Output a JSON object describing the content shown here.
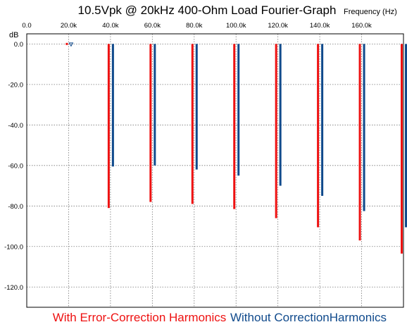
{
  "chart_data": {
    "type": "bar",
    "title": "10.5Vpk @ 20kHz 400-Ohm Load Fourier-Graph",
    "xlabel": "Frequency   (Hz)",
    "ylabel": "dB",
    "x_ticks": [
      "0.0",
      "20.0k",
      "40.0k",
      "60.0k",
      "80.0k",
      "100.0k",
      "120.0k",
      "140.0k",
      "160.0k"
    ],
    "y_ticks": [
      "0.0",
      "-20.0",
      "-40.0",
      "-60.0",
      "-80.0",
      "-100.0",
      "-120.0"
    ],
    "xlim": [
      0,
      180000
    ],
    "ylim": [
      -130,
      5
    ],
    "grid": true,
    "legend_placement": "bottom",
    "categories": [
      20000,
      40000,
      60000,
      80000,
      100000,
      120000,
      140000,
      160000,
      180000
    ],
    "series": [
      {
        "name": "With Error-Correction Harmonics",
        "color": "#ee1111",
        "values": [
          0,
          -81,
          -78,
          -79,
          -81.5,
          -86,
          -90.5,
          -97,
          -103.5
        ]
      },
      {
        "name": "Without CorrectionHarmonics",
        "color": "#104a8c",
        "values": [
          0,
          -60.5,
          -60,
          -62,
          -65,
          -70,
          -75,
          -82.5,
          -90.5
        ]
      }
    ]
  }
}
